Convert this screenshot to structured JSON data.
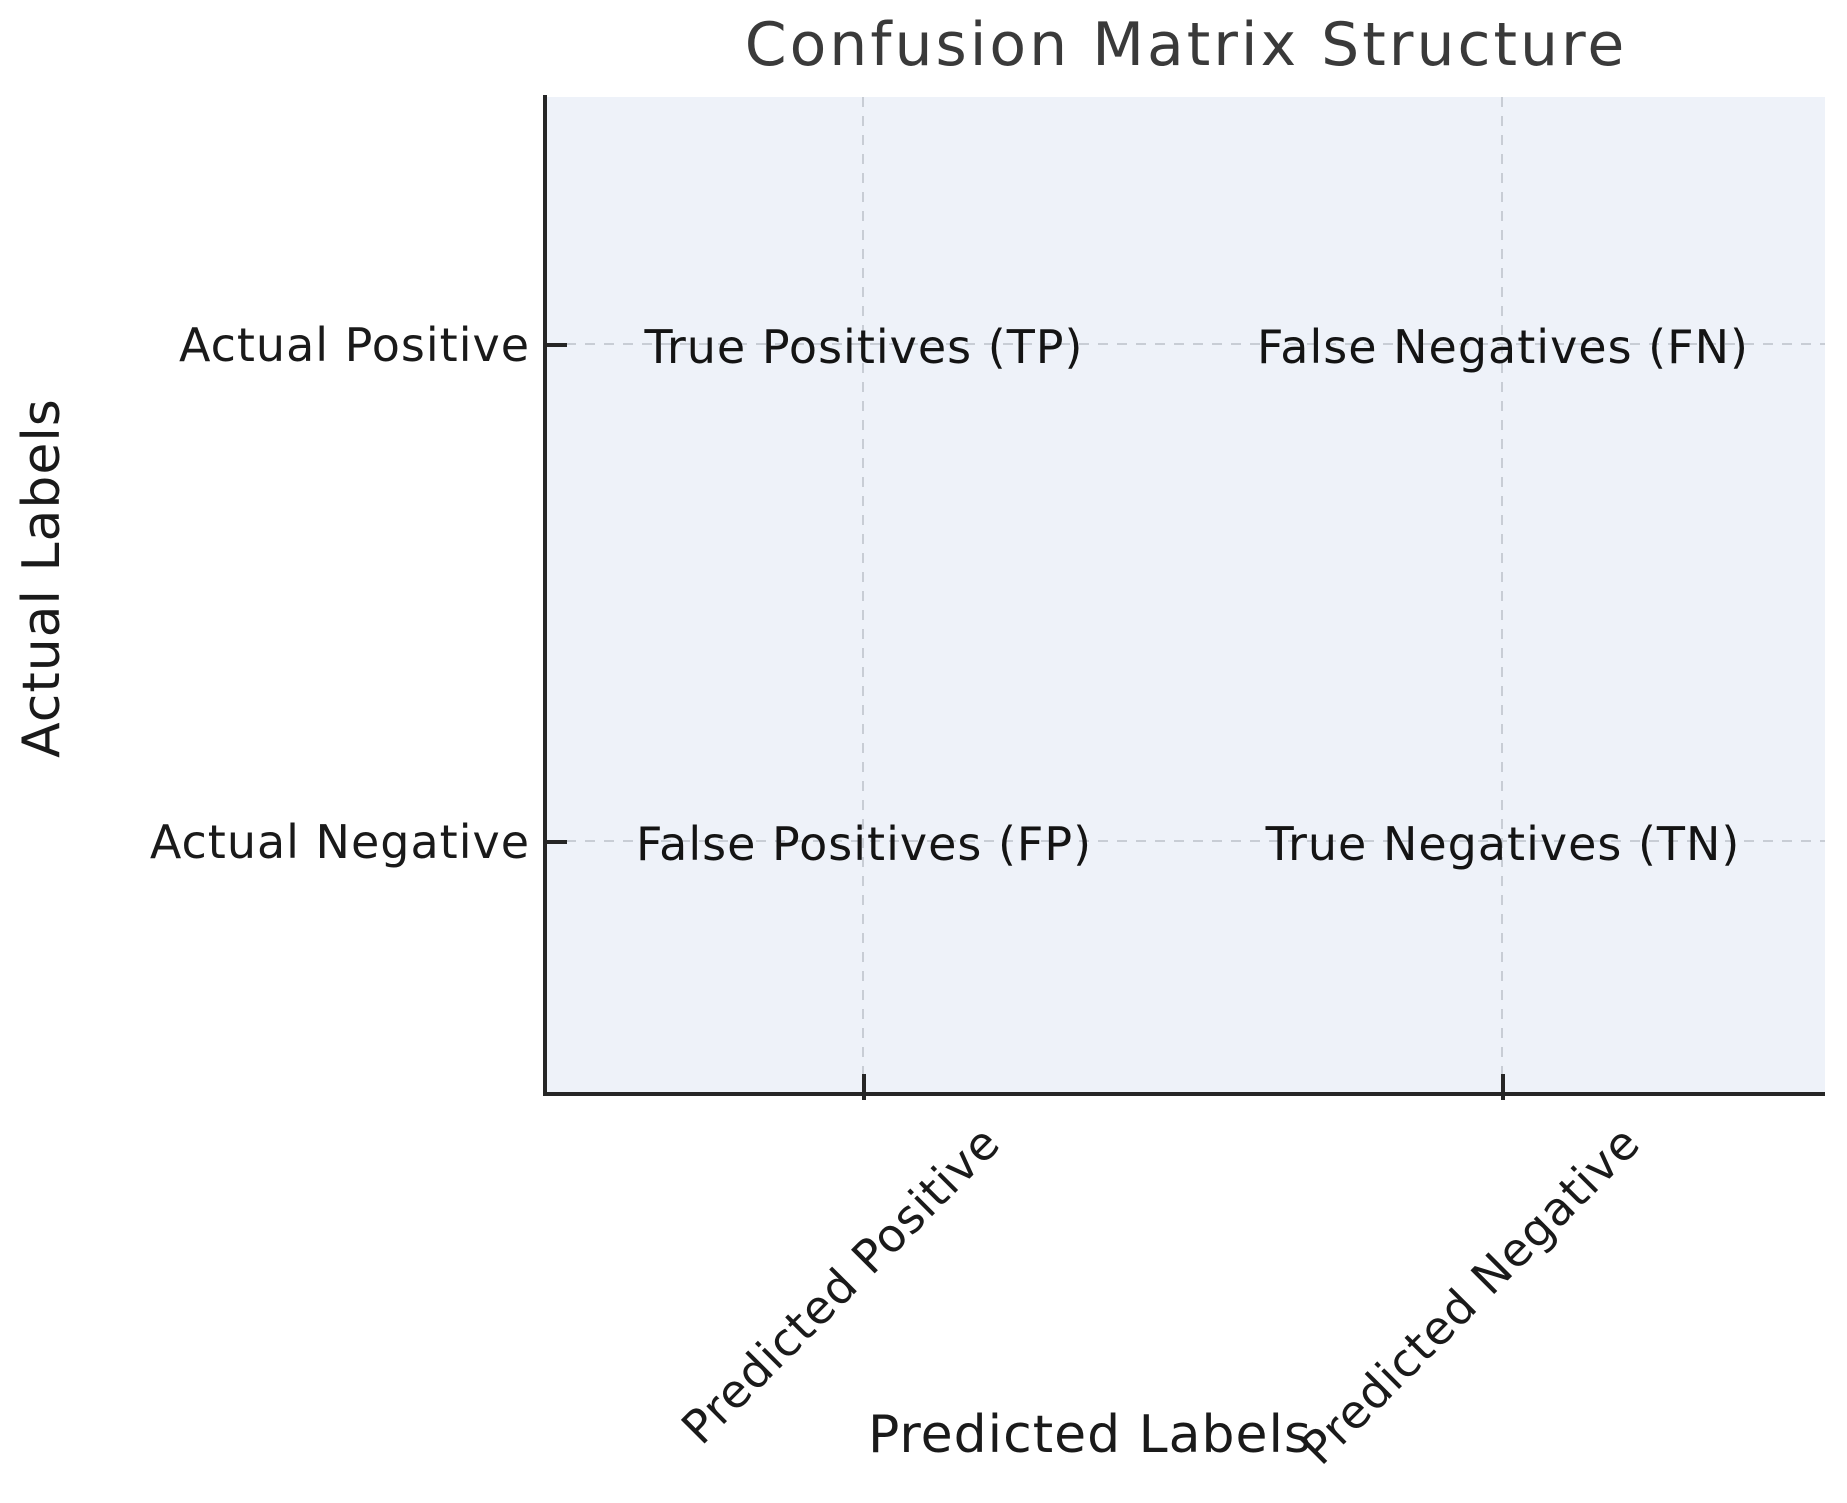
{
  "chart_data": {
    "type": "table",
    "title": "Confusion Matrix Structure",
    "xlabel": "Predicted Labels",
    "ylabel": "Actual Labels",
    "x_categories": [
      "Predicted Positive",
      "Predicted Negative"
    ],
    "y_categories": [
      "Actual Positive",
      "Actual Negative"
    ],
    "cells": [
      [
        "True Positives (TP)",
        "False Negatives (FN)"
      ],
      [
        "False Positives (FP)",
        "True Negatives (TN)"
      ]
    ],
    "x_tick_rotation_deg": 45,
    "grid": "dashed",
    "gridline_fractions": {
      "x": [
        0.25,
        0.75
      ],
      "y": [
        0.25,
        0.75
      ]
    },
    "legend": "none",
    "colors": {
      "figure_background": "#ffffff",
      "axes_background": "#eef2f9",
      "gridline": "#c8cdd5",
      "spine": "#262626",
      "text": "#1a1a1a",
      "title": "#3a3a3a"
    }
  }
}
